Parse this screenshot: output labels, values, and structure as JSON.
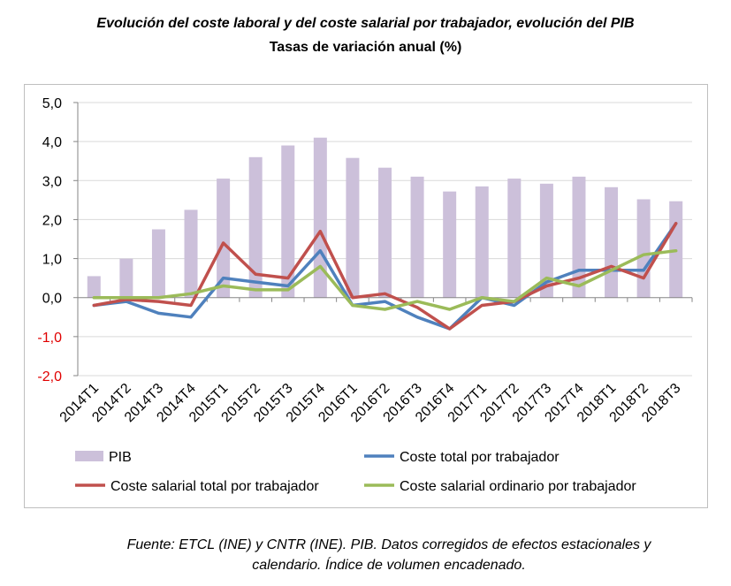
{
  "title": "Evolución del coste laboral y del coste salarial por trabajador, evolución del PIB",
  "subtitle": "Tasas de variación anual (%)",
  "source": "Fuente: ETCL (INE) y CNTR (INE). PIB. Datos corregidos de efectos estacionales y calendario. Índice de volumen encadenado.",
  "chart_data": {
    "type": "bar+line",
    "title": "Evolución del coste laboral y del coste salarial por trabajador, evolución del PIB",
    "subtitle": "Tasas de variación anual (%)",
    "xlabel": "",
    "ylabel": "",
    "ylim": [
      -2.0,
      5.0
    ],
    "ytick_labels": [
      "5,0",
      "4,0",
      "3,0",
      "2,0",
      "1,0",
      "0,0",
      "-1,0",
      "-2,0"
    ],
    "ytick_values": [
      5,
      4,
      3,
      2,
      1,
      0,
      -1,
      -2
    ],
    "grid": true,
    "legend_position": "bottom",
    "categories": [
      "2014T1",
      "2014T2",
      "2014T3",
      "2014T4",
      "2015T1",
      "2015T2",
      "2015T3",
      "2015T4",
      "2016T1",
      "2016T2",
      "2016T3",
      "2016T4",
      "2017T1",
      "2017T2",
      "2017T3",
      "2017T4",
      "2018T1",
      "2018T2",
      "2018T3"
    ],
    "series": [
      {
        "name": "PIB",
        "kind": "bar",
        "color": "#ccc0da",
        "values": [
          0.55,
          1.0,
          1.75,
          2.25,
          3.05,
          3.6,
          3.9,
          4.1,
          3.58,
          3.33,
          3.1,
          2.72,
          2.85,
          3.05,
          2.92,
          3.1,
          2.83,
          2.52,
          2.47
        ]
      },
      {
        "name": "Coste total por trabajador",
        "kind": "line",
        "color": "#4f81bd",
        "values": [
          -0.2,
          -0.1,
          -0.4,
          -0.5,
          0.5,
          0.4,
          0.3,
          1.2,
          -0.2,
          -0.1,
          -0.5,
          -0.8,
          0.0,
          -0.2,
          0.4,
          0.7,
          0.7,
          0.7,
          1.9
        ]
      },
      {
        "name": "Coste salarial total por trabajador",
        "kind": "line",
        "color": "#c0504d",
        "values": [
          -0.2,
          -0.05,
          -0.1,
          -0.2,
          1.4,
          0.6,
          0.5,
          1.7,
          0.0,
          0.1,
          -0.25,
          -0.8,
          -0.2,
          -0.1,
          0.3,
          0.5,
          0.8,
          0.5,
          1.9
        ]
      },
      {
        "name": "Coste salarial ordinario por trabajador",
        "kind": "line",
        "color": "#9bbb59",
        "values": [
          0.0,
          0.0,
          0.0,
          0.1,
          0.3,
          0.2,
          0.2,
          0.8,
          -0.2,
          -0.3,
          -0.1,
          -0.3,
          0.0,
          -0.1,
          0.5,
          0.3,
          0.7,
          1.1,
          1.2
        ]
      }
    ]
  }
}
